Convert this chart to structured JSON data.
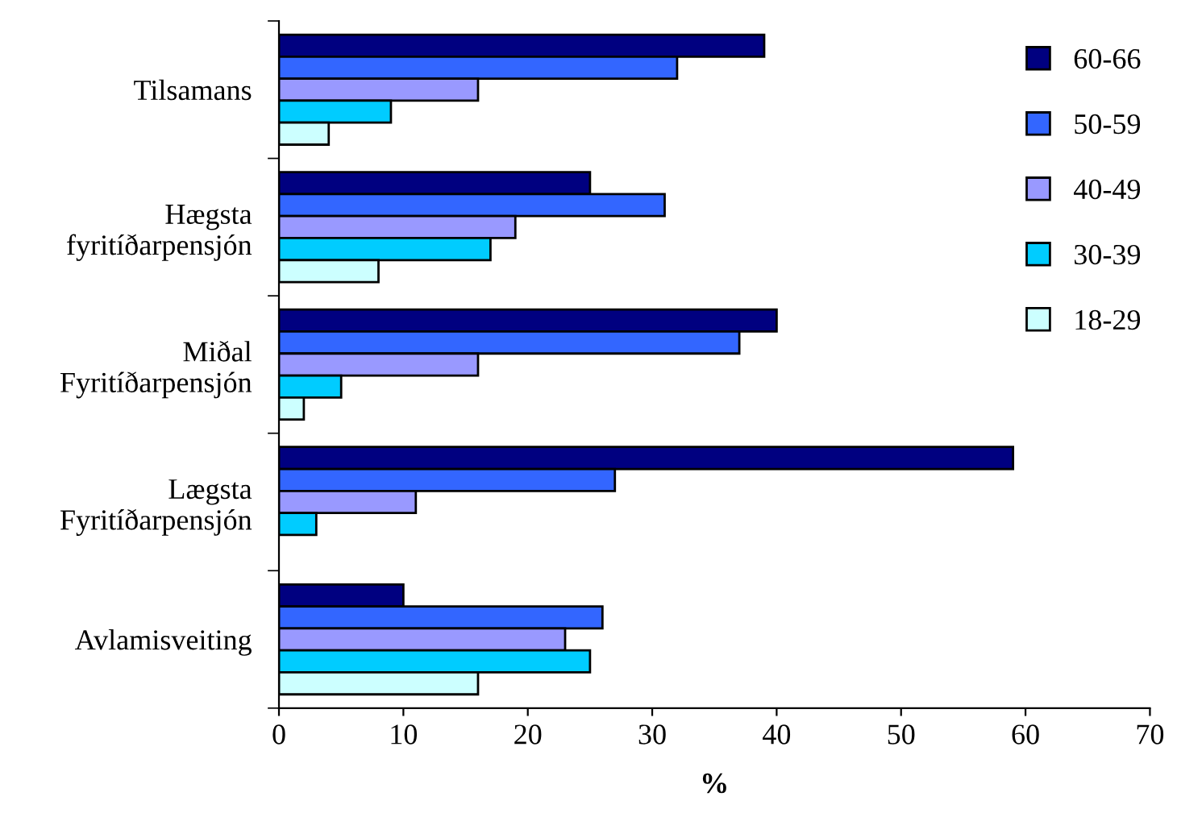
{
  "chart_data": {
    "type": "bar",
    "orientation": "horizontal",
    "xlabel": "%",
    "categories": [
      "Tilsamans",
      "Hægsta\nfyritíðarpensjón",
      "Miðal\nFyritíðarpensjón",
      "Lægsta\nFyritíðarpensjón",
      "Avlamisveiting"
    ],
    "series": [
      {
        "name": "60-66",
        "color": "#000080",
        "values": [
          39,
          25,
          40,
          59,
          10
        ]
      },
      {
        "name": "50-59",
        "color": "#3366ff",
        "values": [
          32,
          31,
          37,
          27,
          26
        ]
      },
      {
        "name": "40-49",
        "color": "#9999ff",
        "values": [
          16,
          19,
          16,
          11,
          23
        ]
      },
      {
        "name": "30-39",
        "color": "#00ccff",
        "values": [
          9,
          17,
          5,
          3,
          25
        ]
      },
      {
        "name": "18-29",
        "color": "#ccffff",
        "values": [
          4,
          8,
          2,
          null,
          16
        ]
      }
    ],
    "xlim": [
      0,
      70
    ],
    "xticks": [
      0,
      10,
      20,
      30,
      40,
      50,
      60,
      70
    ],
    "grid": false,
    "legend": "right"
  }
}
